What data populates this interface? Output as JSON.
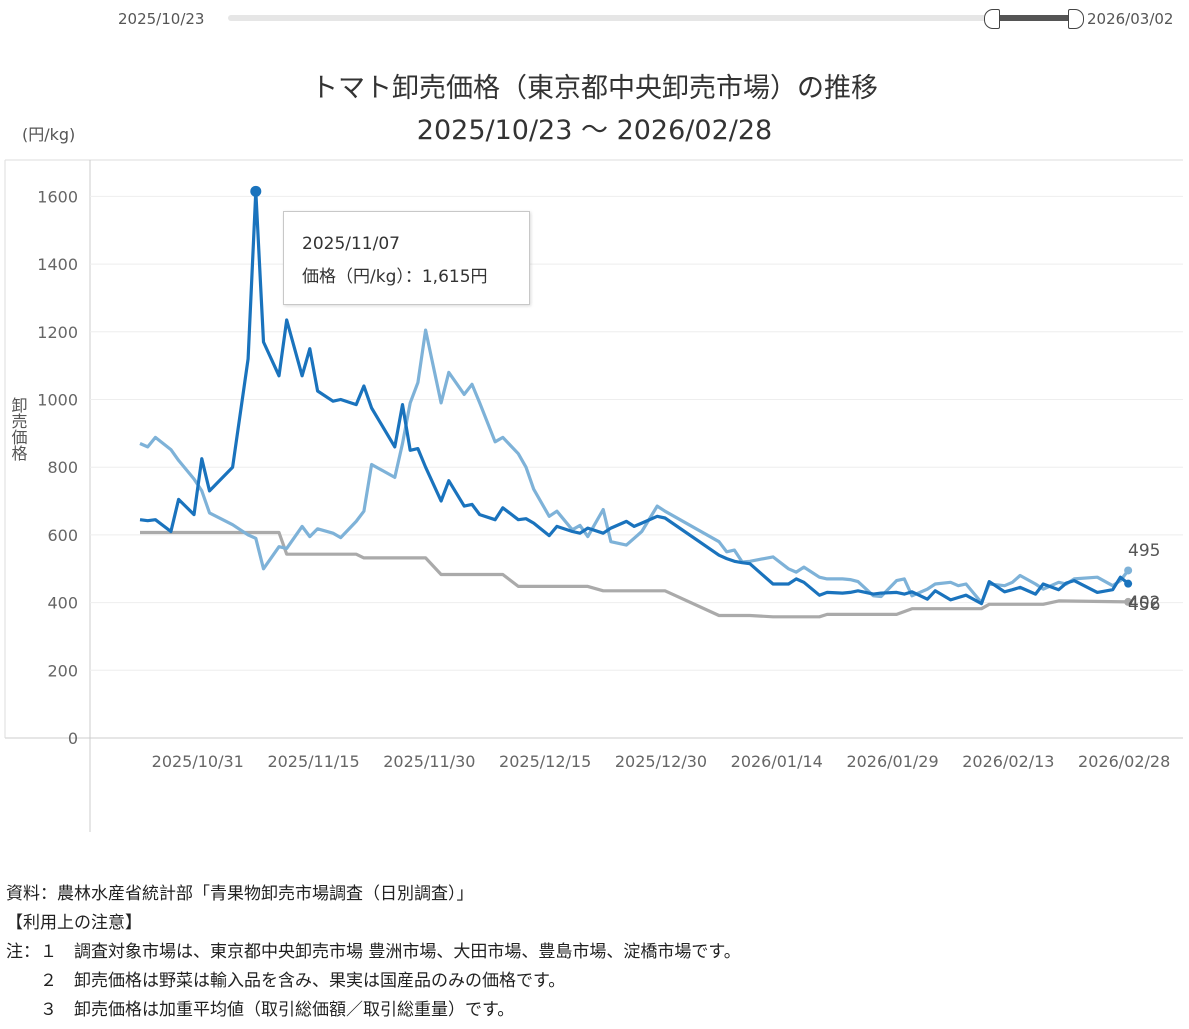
{
  "range_slider": {
    "start_label": "2025/10/23",
    "end_label": "2026/03/02"
  },
  "title_line1": "トマト卸売価格（東京都中央卸売市場）の推移",
  "title_line2": "2025/10/23 ～ 2026/02/28",
  "unit_label": "(円/kg)",
  "y_axis_title": "卸売価格",
  "tooltip": {
    "date": "2025/11/07",
    "value_text": "価格（円/kg）：1,615円"
  },
  "notes": [
    "資料：農林水産省統計部「青果物卸売市場調査（日別調査）」",
    "【利用上の注意】",
    "注：１　調査対象市場は、東京都中央卸売市場 豊洲市場、大田市場、豊島市場、淀橋市場です。",
    "　　２　卸売価格は野菜は輸入品を含み、果実は国産品のみの価格です。",
    "　　３　卸売価格は加重平均値（取引総価額／取引総重量）です。"
  ],
  "colors": {
    "series_current": "#1a73bd",
    "series_light": "#7eb2d8",
    "series_gray": "#aaaaaa"
  },
  "chart_data": {
    "type": "line",
    "title": "トマト卸売価格（東京都中央卸売市場）の推移",
    "subtitle": "2025/10/23 ～ 2026/02/28",
    "ylabel": "卸売価格",
    "ylim": [
      0,
      1650
    ],
    "yticks": [
      0,
      200,
      400,
      600,
      800,
      1000,
      1200,
      1400,
      1600
    ],
    "xlim": [
      "2025/10/23",
      "2026/02/28"
    ],
    "xticks": [
      "2025/10/31",
      "2025/11/15",
      "2025/11/30",
      "2025/12/15",
      "2025/12/30",
      "2026/01/14",
      "2026/01/29",
      "2026/02/13",
      "2026/02/28"
    ],
    "grid": true,
    "end_labels": [
      "495",
      "402",
      "456"
    ],
    "series": [
      {
        "color": "#1a73bd",
        "points": [
          [
            "2025/10/23",
            645
          ],
          [
            "2025/10/24",
            642
          ],
          [
            "2025/10/25",
            645
          ],
          [
            "2025/10/27",
            610
          ],
          [
            "2025/10/28",
            705
          ],
          [
            "2025/10/30",
            660
          ],
          [
            "2025/10/31",
            825
          ],
          [
            "2025/11/01",
            730
          ],
          [
            "2025/11/04",
            800
          ],
          [
            "2025/11/06",
            1120
          ],
          [
            "2025/11/07",
            1615
          ],
          [
            "2025/11/08",
            1170
          ],
          [
            "2025/11/10",
            1070
          ],
          [
            "2025/11/11",
            1235
          ],
          [
            "2025/11/13",
            1070
          ],
          [
            "2025/11/14",
            1150
          ],
          [
            "2025/11/15",
            1025
          ],
          [
            "2025/11/17",
            995
          ],
          [
            "2025/11/18",
            1000
          ],
          [
            "2025/11/20",
            985
          ],
          [
            "2025/11/21",
            1040
          ],
          [
            "2025/11/22",
            975
          ],
          [
            "2025/11/25",
            860
          ],
          [
            "2025/11/26",
            985
          ],
          [
            "2025/11/27",
            850
          ],
          [
            "2025/11/28",
            855
          ],
          [
            "2025/11/29",
            800
          ],
          [
            "2025/12/01",
            700
          ],
          [
            "2025/12/02",
            760
          ],
          [
            "2025/12/04",
            685
          ],
          [
            "2025/12/05",
            690
          ],
          [
            "2025/12/06",
            660
          ],
          [
            "2025/12/08",
            645
          ],
          [
            "2025/12/09",
            680
          ],
          [
            "2025/12/11",
            645
          ],
          [
            "2025/12/12",
            648
          ],
          [
            "2025/12/13",
            635
          ],
          [
            "2025/12/15",
            598
          ],
          [
            "2025/12/16",
            625
          ],
          [
            "2025/12/18",
            610
          ],
          [
            "2025/12/19",
            605
          ],
          [
            "2025/12/20",
            620
          ],
          [
            "2025/12/22",
            605
          ],
          [
            "2025/12/23",
            620
          ],
          [
            "2025/12/25",
            640
          ],
          [
            "2025/12/26",
            625
          ],
          [
            "2025/12/27",
            635
          ],
          [
            "2025/12/29",
            655
          ],
          [
            "2025/12/30",
            650
          ],
          [
            "2026/01/06",
            540
          ],
          [
            "2026/01/07",
            530
          ],
          [
            "2026/01/08",
            522
          ],
          [
            "2026/01/09",
            518
          ],
          [
            "2026/01/10",
            515
          ],
          [
            "2026/01/13",
            455
          ],
          [
            "2026/01/15",
            455
          ],
          [
            "2026/01/16",
            470
          ],
          [
            "2026/01/17",
            460
          ],
          [
            "2026/01/19",
            422
          ],
          [
            "2026/01/20",
            430
          ],
          [
            "2026/01/22",
            428
          ],
          [
            "2026/01/23",
            430
          ],
          [
            "2026/01/24",
            435
          ],
          [
            "2026/01/26",
            425
          ],
          [
            "2026/01/27",
            428
          ],
          [
            "2026/01/29",
            430
          ],
          [
            "2026/01/30",
            425
          ],
          [
            "2026/01/31",
            432
          ],
          [
            "2026/02/02",
            410
          ],
          [
            "2026/02/03",
            435
          ],
          [
            "2026/02/05",
            408
          ],
          [
            "2026/02/06",
            415
          ],
          [
            "2026/02/07",
            422
          ],
          [
            "2026/02/09",
            397
          ],
          [
            "2026/02/10",
            462
          ],
          [
            "2026/02/12",
            432
          ],
          [
            "2026/02/13",
            438
          ],
          [
            "2026/02/14",
            445
          ],
          [
            "2026/02/16",
            425
          ],
          [
            "2026/02/17",
            455
          ],
          [
            "2026/02/19",
            438
          ],
          [
            "2026/02/20",
            458
          ],
          [
            "2026/02/21",
            465
          ],
          [
            "2026/02/24",
            430
          ],
          [
            "2026/02/26",
            438
          ],
          [
            "2026/02/27",
            475
          ],
          [
            "2026/02/28",
            456
          ]
        ]
      },
      {
        "color": "#7eb2d8",
        "points": [
          [
            "2025/10/23",
            870
          ],
          [
            "2025/10/24",
            860
          ],
          [
            "2025/10/25",
            888
          ],
          [
            "2025/10/27",
            852
          ],
          [
            "2025/10/28",
            820
          ],
          [
            "2025/10/30",
            765
          ],
          [
            "2025/10/31",
            730
          ],
          [
            "2025/11/01",
            665
          ],
          [
            "2025/11/04",
            630
          ],
          [
            "2025/11/06",
            600
          ],
          [
            "2025/11/07",
            590
          ],
          [
            "2025/11/08",
            500
          ],
          [
            "2025/11/10",
            565
          ],
          [
            "2025/11/11",
            560
          ],
          [
            "2025/11/13",
            625
          ],
          [
            "2025/11/14",
            595
          ],
          [
            "2025/11/15",
            618
          ],
          [
            "2025/11/17",
            605
          ],
          [
            "2025/11/18",
            592
          ],
          [
            "2025/11/20",
            640
          ],
          [
            "2025/11/21",
            670
          ],
          [
            "2025/11/22",
            808
          ],
          [
            "2025/11/25",
            770
          ],
          [
            "2025/11/26",
            870
          ],
          [
            "2025/11/27",
            990
          ],
          [
            "2025/11/28",
            1050
          ],
          [
            "2025/11/29",
            1205
          ],
          [
            "2025/12/01",
            990
          ],
          [
            "2025/12/02",
            1080
          ],
          [
            "2025/12/04",
            1015
          ],
          [
            "2025/12/05",
            1045
          ],
          [
            "2025/12/06",
            990
          ],
          [
            "2025/12/08",
            875
          ],
          [
            "2025/12/09",
            888
          ],
          [
            "2025/12/11",
            840
          ],
          [
            "2025/12/12",
            800
          ],
          [
            "2025/12/13",
            735
          ],
          [
            "2025/12/15",
            655
          ],
          [
            "2025/12/16",
            670
          ],
          [
            "2025/12/18",
            615
          ],
          [
            "2025/12/19",
            628
          ],
          [
            "2025/12/20",
            595
          ],
          [
            "2025/12/22",
            675
          ],
          [
            "2025/12/23",
            580
          ],
          [
            "2025/12/25",
            570
          ],
          [
            "2025/12/26",
            590
          ],
          [
            "2025/12/27",
            610
          ],
          [
            "2025/12/29",
            685
          ],
          [
            "2025/12/30",
            670
          ],
          [
            "2026/01/06",
            580
          ],
          [
            "2026/01/07",
            550
          ],
          [
            "2026/01/08",
            555
          ],
          [
            "2026/01/09",
            520
          ],
          [
            "2026/01/10",
            522
          ],
          [
            "2026/01/13",
            535
          ],
          [
            "2026/01/15",
            500
          ],
          [
            "2026/01/16",
            490
          ],
          [
            "2026/01/17",
            505
          ],
          [
            "2026/01/19",
            475
          ],
          [
            "2026/01/20",
            470
          ],
          [
            "2026/01/22",
            470
          ],
          [
            "2026/01/23",
            468
          ],
          [
            "2026/01/24",
            462
          ],
          [
            "2026/01/26",
            420
          ],
          [
            "2026/01/27",
            418
          ],
          [
            "2026/01/29",
            465
          ],
          [
            "2026/01/30",
            470
          ],
          [
            "2026/01/31",
            420
          ],
          [
            "2026/02/02",
            440
          ],
          [
            "2026/02/03",
            455
          ],
          [
            "2026/02/05",
            460
          ],
          [
            "2026/02/06",
            450
          ],
          [
            "2026/02/07",
            455
          ],
          [
            "2026/02/09",
            400
          ],
          [
            "2026/02/10",
            455
          ],
          [
            "2026/02/12",
            450
          ],
          [
            "2026/02/13",
            460
          ],
          [
            "2026/02/14",
            480
          ],
          [
            "2026/02/16",
            455
          ],
          [
            "2026/02/17",
            440
          ],
          [
            "2026/02/19",
            460
          ],
          [
            "2026/02/20",
            455
          ],
          [
            "2026/02/21",
            470
          ],
          [
            "2026/02/24",
            475
          ],
          [
            "2026/02/26",
            450
          ],
          [
            "2026/02/27",
            465
          ],
          [
            "2026/02/28",
            495
          ]
        ]
      },
      {
        "color": "#aaaaaa",
        "points": [
          [
            "2025/10/23",
            607
          ],
          [
            "2025/11/07",
            607
          ],
          [
            "2025/11/10",
            607
          ],
          [
            "2025/11/11",
            543
          ],
          [
            "2025/11/20",
            543
          ],
          [
            "2025/11/21",
            532
          ],
          [
            "2025/11/29",
            532
          ],
          [
            "2025/12/01",
            483
          ],
          [
            "2025/12/09",
            483
          ],
          [
            "2025/12/11",
            448
          ],
          [
            "2025/12/20",
            448
          ],
          [
            "2025/12/22",
            435
          ],
          [
            "2025/12/30",
            435
          ],
          [
            "2026/01/06",
            362
          ],
          [
            "2026/01/10",
            362
          ],
          [
            "2026/01/13",
            358
          ],
          [
            "2026/01/19",
            358
          ],
          [
            "2026/01/20",
            365
          ],
          [
            "2026/01/29",
            365
          ],
          [
            "2026/01/31",
            382
          ],
          [
            "2026/02/09",
            382
          ],
          [
            "2026/02/10",
            395
          ],
          [
            "2026/02/17",
            395
          ],
          [
            "2026/02/19",
            405
          ],
          [
            "2026/02/28",
            402
          ]
        ]
      }
    ]
  }
}
